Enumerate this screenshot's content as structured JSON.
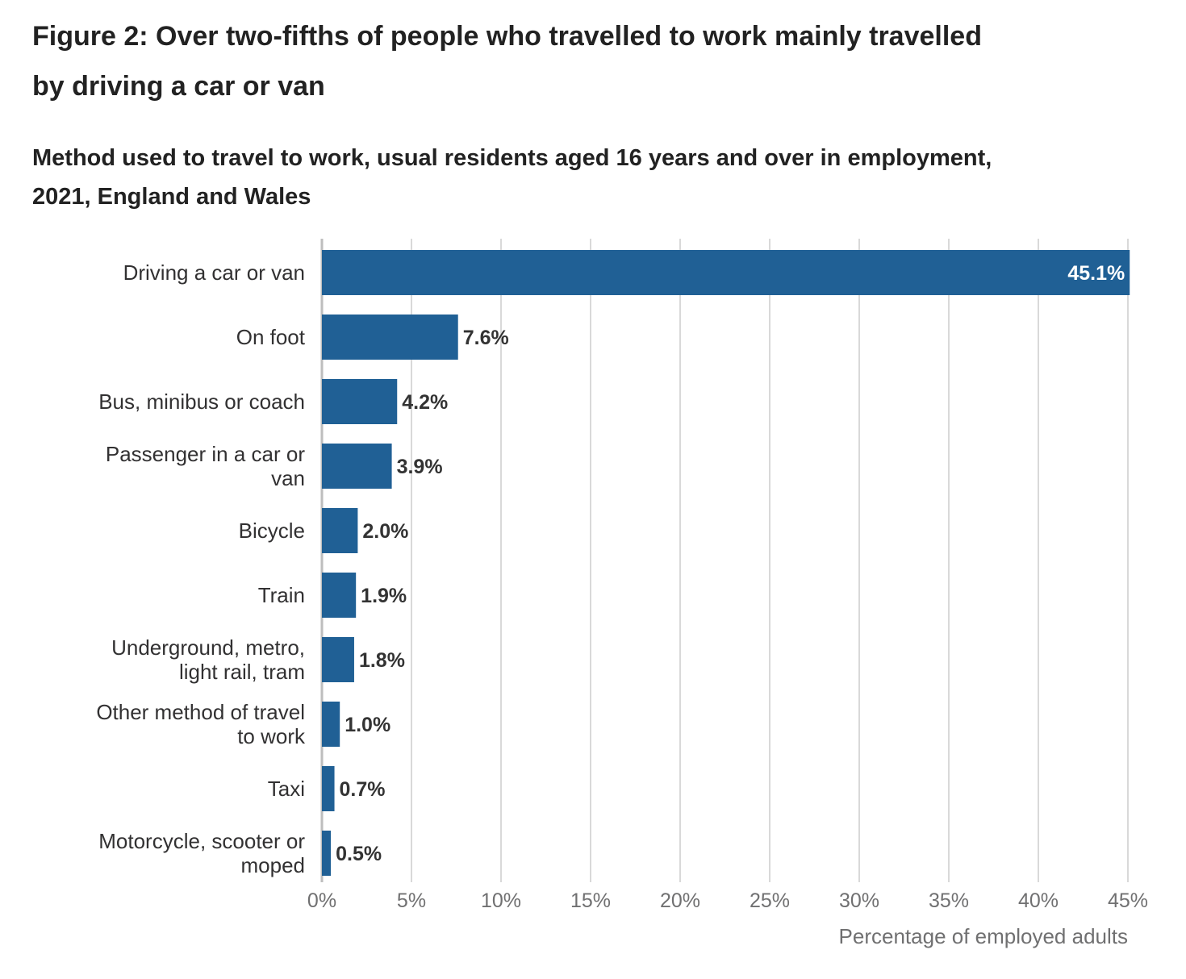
{
  "figure": {
    "title": "Figure 2: Over two-fifths of people who travelled to work mainly travelled by driving a car or van"
  },
  "chart_data": {
    "type": "bar",
    "orientation": "horizontal",
    "title": "Method used to travel to work, usual residents aged 16 years and over in employment, 2021, England and Wales",
    "xlabel": "Percentage of employed adults",
    "ylabel": "",
    "categories": [
      [
        "Driving a car or van"
      ],
      [
        "On foot"
      ],
      [
        "Bus, minibus or coach"
      ],
      [
        "Passenger in a car or",
        "van"
      ],
      [
        "Bicycle"
      ],
      [
        "Train"
      ],
      [
        "Underground, metro,",
        "light rail, tram"
      ],
      [
        "Other method of travel",
        "to work"
      ],
      [
        "Taxi"
      ],
      [
        "Motorcycle, scooter or",
        "moped"
      ]
    ],
    "values": [
      45.1,
      7.6,
      4.2,
      3.9,
      2.0,
      1.9,
      1.8,
      1.0,
      0.7,
      0.5
    ],
    "value_labels": [
      "45.1%",
      "7.6%",
      "4.2%",
      "3.9%",
      "2.0%",
      "1.9%",
      "1.8%",
      "1.0%",
      "0.7%",
      "0.5%"
    ],
    "xlim": [
      0,
      45
    ],
    "xticks": [
      0,
      5,
      10,
      15,
      20,
      25,
      30,
      35,
      40,
      45
    ],
    "xtick_labels": [
      "0%",
      "5%",
      "10%",
      "15%",
      "20%",
      "25%",
      "30%",
      "35%",
      "40%",
      "45%"
    ],
    "grid": true,
    "legend": "none",
    "colors": {
      "bar": "#206095",
      "grid": "#d9d9d9",
      "axis": "#bebebe",
      "label_inside": "#ffffff",
      "label_outside": "#333333"
    }
  }
}
